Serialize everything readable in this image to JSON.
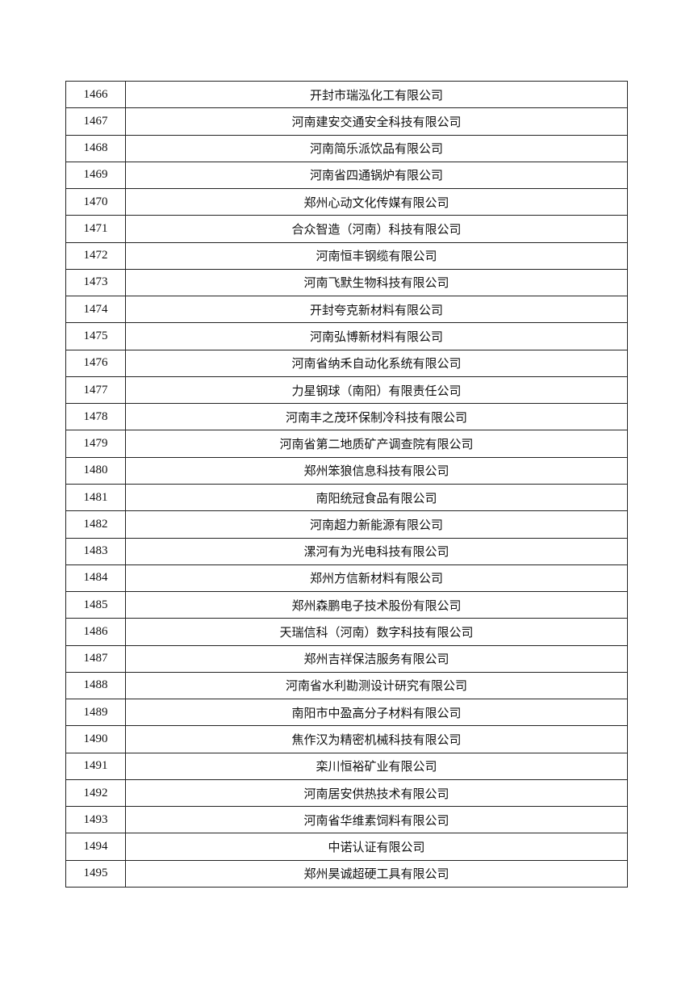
{
  "rows": [
    {
      "no": "1466",
      "name": "开封市瑞泓化工有限公司"
    },
    {
      "no": "1467",
      "name": "河南建安交通安全科技有限公司"
    },
    {
      "no": "1468",
      "name": "河南简乐派饮品有限公司"
    },
    {
      "no": "1469",
      "name": "河南省四通锅炉有限公司"
    },
    {
      "no": "1470",
      "name": "郑州心动文化传媒有限公司"
    },
    {
      "no": "1471",
      "name": "合众智造（河南）科技有限公司"
    },
    {
      "no": "1472",
      "name": "河南恒丰钢缆有限公司"
    },
    {
      "no": "1473",
      "name": "河南飞默生物科技有限公司"
    },
    {
      "no": "1474",
      "name": "开封夸克新材料有限公司"
    },
    {
      "no": "1475",
      "name": "河南弘博新材料有限公司"
    },
    {
      "no": "1476",
      "name": "河南省纳禾自动化系统有限公司"
    },
    {
      "no": "1477",
      "name": "力星钢球（南阳）有限责任公司"
    },
    {
      "no": "1478",
      "name": "河南丰之茂环保制冷科技有限公司"
    },
    {
      "no": "1479",
      "name": "河南省第二地质矿产调查院有限公司"
    },
    {
      "no": "1480",
      "name": "郑州笨狼信息科技有限公司"
    },
    {
      "no": "1481",
      "name": "南阳统冠食品有限公司"
    },
    {
      "no": "1482",
      "name": "河南超力新能源有限公司"
    },
    {
      "no": "1483",
      "name": "漯河有为光电科技有限公司"
    },
    {
      "no": "1484",
      "name": "郑州方信新材料有限公司"
    },
    {
      "no": "1485",
      "name": "郑州森鹏电子技术股份有限公司"
    },
    {
      "no": "1486",
      "name": "天瑞信科（河南）数字科技有限公司"
    },
    {
      "no": "1487",
      "name": "郑州吉祥保洁服务有限公司"
    },
    {
      "no": "1488",
      "name": "河南省水利勘测设计研究有限公司"
    },
    {
      "no": "1489",
      "name": "南阳市中盈高分子材料有限公司"
    },
    {
      "no": "1490",
      "name": "焦作汉为精密机械科技有限公司"
    },
    {
      "no": "1491",
      "name": "栾川恒裕矿业有限公司"
    },
    {
      "no": "1492",
      "name": "河南居安供热技术有限公司"
    },
    {
      "no": "1493",
      "name": "河南省华维素饲料有限公司"
    },
    {
      "no": "1494",
      "name": "中诺认证有限公司"
    },
    {
      "no": "1495",
      "name": "郑州昊诚超硬工具有限公司"
    }
  ]
}
